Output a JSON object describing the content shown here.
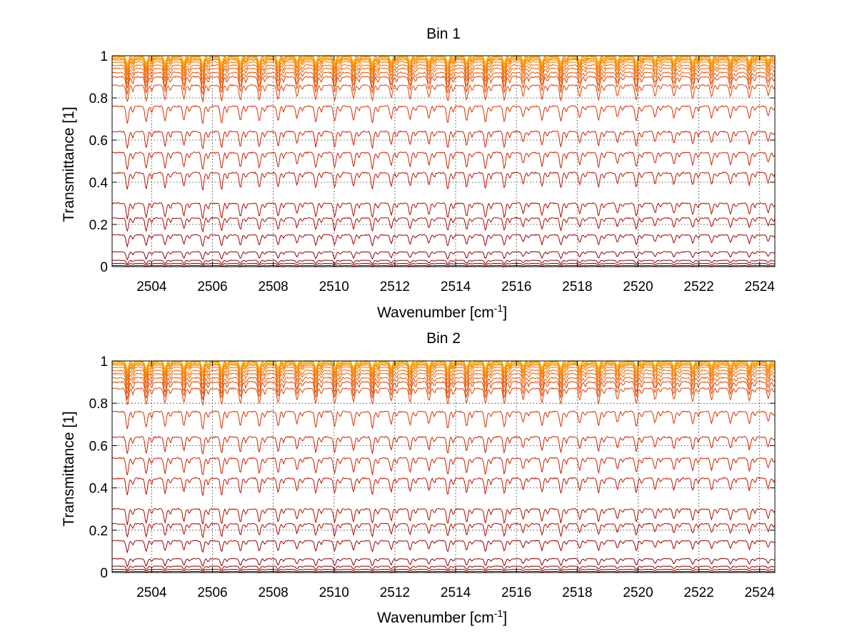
{
  "figure": {
    "background": "#ffffff",
    "grid_color": "#222222",
    "line_colors": [
      "#800000",
      "#8f0000",
      "#a00000",
      "#b00a00",
      "#bf1500",
      "#cc2200",
      "#d93000",
      "#e24000",
      "#ea5200",
      "#f06400",
      "#f47600",
      "#f78800",
      "#f99a00",
      "#fbab10",
      "#fdbb20"
    ]
  },
  "chart_data": [
    {
      "type": "line",
      "title": "Bin 1",
      "xlabel": "Wavenumber [cm",
      "xlabel_sup": "-1",
      "xlabel_end": "]",
      "ylabel": "Transmittance [1]",
      "xlim": [
        2502.7,
        2524.5
      ],
      "ylim": [
        0,
        1
      ],
      "grid": true,
      "x_ticks": [
        2504,
        2506,
        2508,
        2510,
        2512,
        2514,
        2516,
        2518,
        2520,
        2522,
        2524
      ],
      "y_ticks": [
        0,
        0.2,
        0.4,
        0.6,
        0.8,
        1
      ],
      "y_tick_labels": [
        "0",
        "0.2",
        "0.4",
        "0.6",
        "0.8",
        "1"
      ],
      "line_spacing_cm1": 0.62,
      "series_baselines": [
        1.0,
        0.998,
        0.995,
        0.99,
        0.985,
        0.98,
        0.97,
        0.955,
        0.94,
        0.92,
        0.9,
        0.86,
        0.76,
        0.64,
        0.54,
        0.445,
        0.3,
        0.23,
        0.15,
        0.07,
        0.03,
        0.015,
        0.005
      ],
      "dip_depths": [
        0.04,
        0.045,
        0.05,
        0.055,
        0.06,
        0.065,
        0.07,
        0.075,
        0.08,
        0.085,
        0.09,
        0.09,
        0.09,
        0.09,
        0.09,
        0.09,
        0.08,
        0.07,
        0.06,
        0.04,
        0.02,
        0.01,
        0.004
      ]
    },
    {
      "type": "line",
      "title": "Bin 2",
      "xlabel": "Wavenumber [cm",
      "xlabel_sup": "-1",
      "xlabel_end": "]",
      "ylabel": "Transmittance [1]",
      "xlim": [
        2502.7,
        2524.5
      ],
      "ylim": [
        0,
        1
      ],
      "grid": true,
      "x_ticks": [
        2504,
        2506,
        2508,
        2510,
        2512,
        2514,
        2516,
        2518,
        2520,
        2522,
        2524
      ],
      "y_ticks": [
        0,
        0.2,
        0.4,
        0.6,
        0.8,
        1
      ],
      "y_tick_labels": [
        "0",
        "0.2",
        "0.4",
        "0.6",
        "0.8",
        "1"
      ],
      "line_spacing_cm1": 0.62,
      "series_baselines": [
        1.0,
        0.998,
        0.995,
        0.99,
        0.985,
        0.98,
        0.97,
        0.955,
        0.94,
        0.92,
        0.9,
        0.87,
        0.76,
        0.64,
        0.54,
        0.445,
        0.3,
        0.23,
        0.15,
        0.065,
        0.03,
        0.015,
        0.005
      ],
      "dip_depths": [
        0.04,
        0.045,
        0.05,
        0.055,
        0.06,
        0.065,
        0.07,
        0.075,
        0.08,
        0.085,
        0.09,
        0.09,
        0.09,
        0.09,
        0.09,
        0.09,
        0.08,
        0.07,
        0.06,
        0.04,
        0.02,
        0.01,
        0.004
      ]
    }
  ]
}
